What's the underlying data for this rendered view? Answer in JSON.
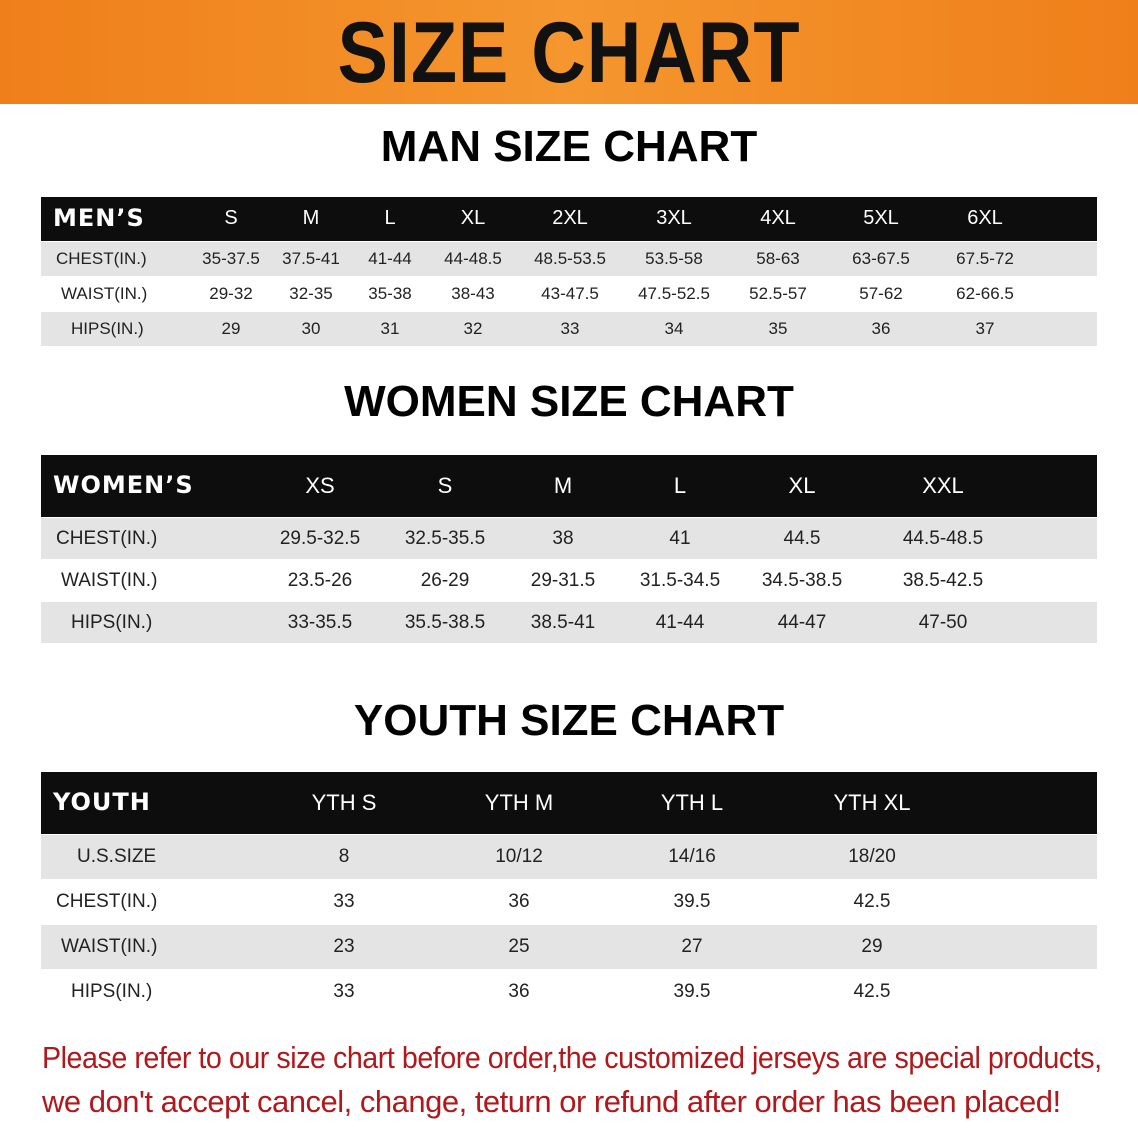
{
  "banner_title": "SIZE CHART",
  "men": {
    "title": "MAN SIZE CHART",
    "header_label": "MEN’S",
    "sizes": [
      "S",
      "M",
      "L",
      "XL",
      "2XL",
      "3XL",
      "4XL",
      "5XL",
      "6XL"
    ],
    "rows": [
      {
        "label": "CHEST(IN.)",
        "values": [
          "35-37.5",
          "37.5-41",
          "41-44",
          "44-48.5",
          "48.5-53.5",
          "53.5-58",
          "58-63",
          "63-67.5",
          "67.5-72"
        ]
      },
      {
        "label": "WAIST(IN.)",
        "values": [
          "29-32",
          "32-35",
          "35-38",
          "38-43",
          "43-47.5",
          "47.5-52.5",
          "52.5-57",
          "57-62",
          "62-66.5"
        ]
      },
      {
        "label": "HIPS(IN.)",
        "values": [
          "29",
          "30",
          "31",
          "32",
          "33",
          "34",
          "35",
          "36",
          "37"
        ]
      }
    ]
  },
  "women": {
    "title": "WOMEN SIZE CHART",
    "header_label": "WOMEN’S",
    "sizes": [
      "XS",
      "S",
      "M",
      "L",
      "XL",
      "XXL"
    ],
    "rows": [
      {
        "label": "CHEST(IN.)",
        "values": [
          "29.5-32.5",
          "32.5-35.5",
          "38",
          "41",
          "44.5",
          "44.5-48.5"
        ]
      },
      {
        "label": "WAIST(IN.)",
        "values": [
          "23.5-26",
          "26-29",
          "29-31.5",
          "31.5-34.5",
          "34.5-38.5",
          "38.5-42.5"
        ]
      },
      {
        "label": "HIPS(IN.)",
        "values": [
          "33-35.5",
          "35.5-38.5",
          "38.5-41",
          "41-44",
          "44-47",
          "47-50"
        ]
      }
    ]
  },
  "youth": {
    "title": "YOUTH SIZE CHART",
    "header_label": "YOUTH",
    "sizes": [
      "YTH S",
      "YTH M",
      "YTH L",
      "YTH XL"
    ],
    "rows": [
      {
        "label": "U.S.SIZE",
        "values": [
          "8",
          "10/12",
          "14/16",
          "18/20"
        ]
      },
      {
        "label": "CHEST(IN.)",
        "values": [
          "33",
          "36",
          "39.5",
          "42.5"
        ]
      },
      {
        "label": "WAIST(IN.)",
        "values": [
          "23",
          "25",
          "27",
          "29"
        ]
      },
      {
        "label": "HIPS(IN.)",
        "values": [
          "33",
          "36",
          "39.5",
          "42.5"
        ]
      }
    ]
  },
  "note": {
    "line1": "Please refer to our size chart before order,the customized jerseys are special products,",
    "line2": "we don't accept cancel, change, teturn or refund after order has been placed!"
  },
  "colors": {
    "banner": "#ef7f1a",
    "header": "#0d0d0d",
    "row_gray": "#e4e4e4",
    "note": "#b0181c"
  }
}
